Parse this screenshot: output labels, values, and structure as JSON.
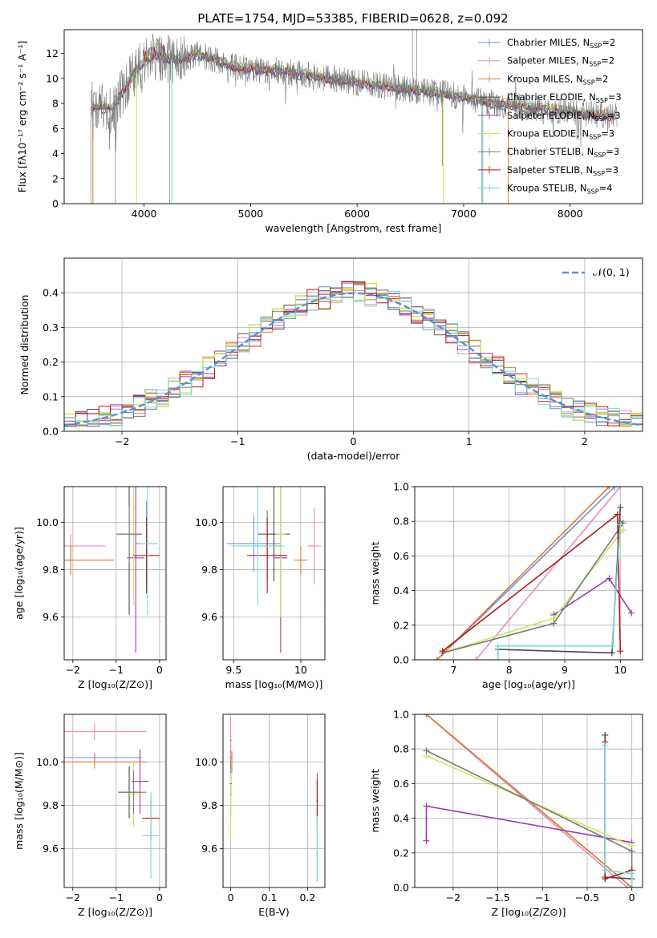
{
  "figure": {
    "title": "PLATE=1754, MJD=53385, FIBERID=0628, z=0.092",
    "colors": [
      "#6f8fe0",
      "#e38fb8",
      "#e07a2a",
      "#4a4a4a",
      "#9c3ab3",
      "#c9e65a",
      "#7a7a7a",
      "#b01818",
      "#78d9d9"
    ]
  },
  "chart_data": [
    {
      "id": "spectrum",
      "type": "line",
      "title": "PLATE=1754, MJD=53385, FIBERID=0628, z=0.092",
      "xlabel": "wavelength [Angstrom, rest frame]",
      "ylabel": "Flux [fλ10⁻¹⁷ erg cm⁻² s⁻¹ A⁻¹]",
      "xlim": [
        3250,
        8680
      ],
      "ylim": [
        0,
        13.9
      ],
      "xticks": [
        4000,
        5000,
        6000,
        7000,
        8000
      ],
      "yticks": [
        0,
        2,
        4,
        6,
        8,
        10,
        12
      ],
      "grid": false,
      "legend_position": "top-right",
      "legend": [
        "Chabrier MILES, N_SSP=2",
        "Salpeter MILES, N_SSP=2",
        "Kroupa MILES, N_SSP=2",
        "Chabrier ELODIE, N_SSP=3",
        "Salpeter ELODIE, N_SSP=3",
        "Kroupa ELODIE, N_SSP=3",
        "Chabrier STELIB, N_SSP=3",
        "Salpeter STELIB, N_SSP=3",
        "Kroupa STELIB, N_SSP=4"
      ],
      "legend_parts": [
        [
          "Chabrier MILES, N",
          "SSP",
          "=2"
        ],
        [
          "Salpeter MILES, N",
          "SSP",
          "=2"
        ],
        [
          "Kroupa MILES, N",
          "SSP",
          "=2"
        ],
        [
          "Chabrier ELODIE, N",
          "SSP",
          "=3"
        ],
        [
          "Salpeter ELODIE, N",
          "SSP",
          "=3"
        ],
        [
          "Kroupa ELODIE, N",
          "SSP",
          "=3"
        ],
        [
          "Chabrier STELIB, N",
          "SSP",
          "=3"
        ],
        [
          "Salpeter STELIB, N",
          "SSP",
          "=3"
        ],
        [
          "Kroupa STELIB, N",
          "SSP",
          "=4"
        ]
      ],
      "continuum": [
        [
          3500,
          7.8
        ],
        [
          3700,
          7.6
        ],
        [
          3800,
          9.0
        ],
        [
          3950,
          11.0
        ],
        [
          4100,
          11.8
        ],
        [
          4300,
          11.5
        ],
        [
          4500,
          11.9
        ],
        [
          4700,
          11.4
        ],
        [
          4900,
          10.8
        ],
        [
          5100,
          10.7
        ],
        [
          5300,
          10.6
        ],
        [
          5500,
          10.3
        ],
        [
          5800,
          9.9
        ],
        [
          6100,
          9.6
        ],
        [
          6400,
          9.2
        ],
        [
          6700,
          8.9
        ],
        [
          7000,
          8.5
        ],
        [
          7300,
          8.0
        ],
        [
          7600,
          7.7
        ],
        [
          7900,
          7.4
        ],
        [
          8250,
          7.1
        ],
        [
          8450,
          6.9
        ]
      ]
    },
    {
      "id": "residuals",
      "type": "line",
      "xlabel": "(data-model)/error",
      "ylabel": "Normed distribution",
      "xlim": [
        -2.5,
        2.5
      ],
      "ylim": [
        0,
        0.5
      ],
      "xticks": [
        -2,
        -1,
        0,
        1,
        2
      ],
      "yticks": [
        0.0,
        0.1,
        0.2,
        0.3,
        0.4
      ],
      "grid": true,
      "legend_position": "top-right",
      "legend": [
        "𝒩(0, 1)"
      ],
      "bin_width": 0.1
    },
    {
      "id": "age_vs_Z",
      "type": "scatter",
      "xlabel": "Z [log₁₀(Z/Z⊙)]",
      "ylabel": "age  [log₁₀(age/yr)]",
      "xlim": [
        -2.2,
        0.15
      ],
      "ylim": [
        9.42,
        10.15
      ],
      "xticks": [
        -2,
        -1,
        0
      ],
      "yticks": [
        9.6,
        9.8,
        10.0
      ],
      "grid": true,
      "points": [
        [
          -0.3,
          9.91,
          0.25,
          0.18
        ],
        [
          -2.05,
          9.9,
          0.8,
          0.05
        ],
        [
          -2.05,
          9.84,
          1.0,
          0.06
        ],
        [
          -0.7,
          9.95,
          0.25,
          0.34
        ],
        [
          -0.55,
          9.85,
          0.2,
          0.4
        ],
        [
          -0.6,
          9.95,
          0.2,
          0.3
        ],
        [
          -0.7,
          9.95,
          0.3,
          0.12
        ],
        [
          -0.3,
          9.86,
          0.3,
          0.16
        ],
        [
          -0.28,
          9.91,
          0.2,
          0.3
        ]
      ]
    },
    {
      "id": "age_vs_mass",
      "type": "scatter",
      "xlabel": "mass [log₁₀(M/M⊙)]",
      "ylabel": "",
      "xlim": [
        9.42,
        10.18
      ],
      "ylim": [
        9.42,
        10.15
      ],
      "xticks": [
        9.5,
        10.0
      ],
      "yticks": [
        9.6,
        9.8,
        10.0
      ],
      "grid": true,
      "points": [
        [
          9.65,
          9.91,
          0.2,
          0.12
        ],
        [
          10.1,
          9.9,
          0.05,
          0.16
        ],
        [
          10.0,
          9.84,
          0.05,
          0.06
        ],
        [
          9.8,
          9.95,
          0.12,
          0.2
        ],
        [
          9.85,
          9.85,
          0.05,
          0.4
        ],
        [
          9.85,
          9.95,
          0.04,
          0.35
        ],
        [
          9.75,
          9.9,
          0.1,
          0.15
        ],
        [
          9.75,
          9.86,
          0.15,
          0.16
        ],
        [
          9.68,
          9.9,
          0.2,
          0.25
        ]
      ]
    },
    {
      "id": "weight_vs_age",
      "type": "line",
      "xlabel": "age  [log₁₀(age/yr)]",
      "ylabel": "mass weight",
      "xlim": [
        6.3,
        10.4
      ],
      "ylim": [
        0,
        1.0
      ],
      "xticks": [
        7,
        8,
        9,
        10
      ],
      "yticks": [
        0.0,
        0.2,
        0.4,
        0.6,
        0.8,
        1.0
      ],
      "grid": true,
      "series": [
        {
          "name": "Chabrier MILES",
          "points": [
            [
              6.7,
              0.0
            ],
            [
              9.9,
              1.0
            ]
          ]
        },
        {
          "name": "Salpeter MILES",
          "points": [
            [
              7.4,
              0.0
            ],
            [
              10.0,
              1.0
            ]
          ]
        },
        {
          "name": "Kroupa MILES",
          "points": [
            [
              6.7,
              0.0
            ],
            [
              9.8,
              1.0
            ]
          ]
        },
        {
          "name": "Chabrier ELODIE",
          "points": [
            [
              7.8,
              0.06
            ],
            [
              9.85,
              0.04
            ],
            [
              10.0,
              0.88
            ]
          ]
        },
        {
          "name": "Salpeter ELODIE",
          "points": [
            [
              8.8,
              0.26
            ],
            [
              9.8,
              0.47
            ],
            [
              10.2,
              0.27
            ]
          ]
        },
        {
          "name": "Kroupa ELODIE",
          "points": [
            [
              6.9,
              0.05
            ],
            [
              8.8,
              0.24
            ],
            [
              10.05,
              0.75
            ]
          ]
        },
        {
          "name": "Chabrier STELIB",
          "points": [
            [
              6.8,
              0.04
            ],
            [
              8.8,
              0.21
            ],
            [
              10.05,
              0.79
            ],
            [
              10.0,
              0.8
            ]
          ]
        },
        {
          "name": "Salpeter STELIB",
          "points": [
            [
              6.8,
              0.05
            ],
            [
              9.95,
              0.84
            ],
            [
              10.0,
              0.05
            ]
          ]
        },
        {
          "name": "Kroupa STELIB",
          "points": [
            [
              7.8,
              0.0
            ],
            [
              7.8,
              0.08
            ],
            [
              9.85,
              0.08
            ],
            [
              10.0,
              0.78
            ]
          ]
        }
      ]
    },
    {
      "id": "mass_vs_Z",
      "type": "scatter",
      "xlabel": "Z [log₁₀(Z/Z⊙)]",
      "ylabel": "mass [log₁₀(M/M⊙)]",
      "xlim": [
        -2.2,
        0.15
      ],
      "ylim": [
        9.42,
        10.22
      ],
      "xticks": [
        -2,
        -1,
        0
      ],
      "yticks": [
        9.6,
        9.8,
        10.0
      ],
      "grid": true,
      "points": [
        [
          -1.5,
          10.02,
          1.1,
          0.02
        ],
        [
          -1.5,
          10.14,
          1.2,
          0.04
        ],
        [
          -1.5,
          10.0,
          1.2,
          0.03
        ],
        [
          -0.7,
          9.86,
          0.25,
          0.12
        ],
        [
          -0.45,
          9.91,
          0.2,
          0.15
        ],
        [
          -0.6,
          9.85,
          0.15,
          0.15
        ],
        [
          -0.6,
          9.86,
          0.3,
          0.1
        ],
        [
          -0.2,
          9.74,
          0.2,
          0.1
        ],
        [
          -0.2,
          9.66,
          0.2,
          0.2
        ]
      ]
    },
    {
      "id": "mass_vs_ebv",
      "type": "scatter",
      "xlabel": "E(B-V)",
      "ylabel": "",
      "xlim": [
        -0.02,
        0.245
      ],
      "ylim": [
        9.42,
        10.22
      ],
      "xticks": [
        0.0,
        0.1,
        0.2
      ],
      "yticks": [
        9.6,
        9.8,
        10.0
      ],
      "grid": true,
      "points": [
        [
          0.0,
          10.02,
          0.003,
          0.1
        ],
        [
          0.0,
          10.1,
          0.003,
          0.1
        ],
        [
          0.003,
          10.0,
          0.002,
          0.05
        ],
        [
          0.0,
          9.9,
          0.003,
          0.05
        ],
        [
          0.0,
          9.85,
          0.002,
          0.1
        ],
        [
          0.0,
          9.8,
          0.002,
          0.15
        ],
        [
          0.225,
          9.7,
          0.002,
          0.25
        ],
        [
          0.225,
          9.82,
          0.002,
          0.1
        ],
        [
          0.225,
          9.6,
          0.002,
          0.15
        ]
      ]
    },
    {
      "id": "weight_vs_Z",
      "type": "line",
      "xlabel": "Z [log₁₀(Z/Z⊙)]",
      "ylabel": "mass weight",
      "xlim": [
        -2.43,
        0.12
      ],
      "ylim": [
        0,
        1.0
      ],
      "xticks": [
        -2.0,
        -1.5,
        -1.0,
        -0.5,
        0.0
      ],
      "yticks": [
        0.0,
        0.2,
        0.4,
        0.6,
        0.8,
        1.0
      ],
      "grid": true,
      "series": [
        {
          "name": "Chabrier MILES",
          "points": [
            [
              -2.3,
              1.0
            ],
            [
              0.0,
              0.0
            ]
          ]
        },
        {
          "name": "Salpeter MILES",
          "points": [
            [
              -2.3,
              1.0
            ],
            [
              -0.05,
              0.0
            ]
          ]
        },
        {
          "name": "Kroupa MILES",
          "points": [
            [
              -2.3,
              1.0
            ],
            [
              0.0,
              0.0
            ]
          ]
        },
        {
          "name": "Chabrier ELODIE",
          "points": [
            [
              -0.3,
              0.88
            ],
            [
              -0.3,
              0.06
            ],
            [
              0.0,
              0.05
            ]
          ]
        },
        {
          "name": "Salpeter ELODIE",
          "points": [
            [
              -2.3,
              0.27
            ],
            [
              -2.3,
              0.47
            ],
            [
              0.0,
              0.26
            ]
          ]
        },
        {
          "name": "Kroupa ELODIE",
          "points": [
            [
              -2.3,
              0.76
            ],
            [
              0.0,
              0.24
            ]
          ]
        },
        {
          "name": "Chabrier STELIB",
          "points": [
            [
              -2.3,
              0.79
            ],
            [
              0.0,
              0.21
            ],
            [
              0.0,
              0.0
            ]
          ]
        },
        {
          "name": "Salpeter STELIB",
          "points": [
            [
              -0.3,
              0.84
            ],
            [
              -0.3,
              0.05
            ],
            [
              0.0,
              0.1
            ]
          ]
        },
        {
          "name": "Kroupa STELIB",
          "points": [
            [
              -0.3,
              0.82
            ],
            [
              -0.3,
              0.1
            ],
            [
              0.0,
              0.08
            ],
            [
              0.0,
              0.0
            ]
          ]
        }
      ]
    }
  ]
}
